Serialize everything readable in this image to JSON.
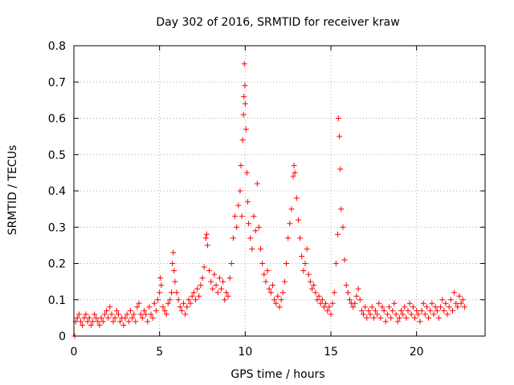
{
  "chart_data": {
    "type": "scatter",
    "title": "Day 302 of 2016, SRMTID for receiver kraw",
    "xlabel": "GPS time / hours",
    "ylabel": "SRMTID / TECUs",
    "xlim": [
      0,
      24
    ],
    "ylim": [
      0,
      0.8
    ],
    "grid": true,
    "marker": "+",
    "marker_color": "#ff0000",
    "x_ticks": [
      0,
      5,
      10,
      15,
      20
    ],
    "x_tick_labels": [
      "0",
      "5",
      "10",
      "15",
      "20"
    ],
    "y_ticks": [
      0,
      0.1,
      0.2,
      0.3,
      0.4,
      0.5,
      0.6,
      0.7,
      0.8
    ],
    "y_tick_labels": [
      "0",
      "0.1",
      "0.2",
      "0.3",
      "0.4",
      "0.5",
      "0.6",
      "0.7",
      "0.8"
    ],
    "series": [
      {
        "name": "SRMTID",
        "points": [
          [
            0.05,
            0.0
          ],
          [
            0.1,
            0.04
          ],
          [
            0.2,
            0.05
          ],
          [
            0.3,
            0.06
          ],
          [
            0.4,
            0.04
          ],
          [
            0.5,
            0.03
          ],
          [
            0.6,
            0.05
          ],
          [
            0.7,
            0.06
          ],
          [
            0.8,
            0.04
          ],
          [
            0.9,
            0.05
          ],
          [
            1.0,
            0.03
          ],
          [
            1.1,
            0.04
          ],
          [
            1.2,
            0.06
          ],
          [
            1.3,
            0.05
          ],
          [
            1.4,
            0.04
          ],
          [
            1.5,
            0.03
          ],
          [
            1.6,
            0.05
          ],
          [
            1.7,
            0.04
          ],
          [
            1.8,
            0.06
          ],
          [
            1.9,
            0.07
          ],
          [
            2.0,
            0.05
          ],
          [
            2.1,
            0.08
          ],
          [
            2.2,
            0.06
          ],
          [
            2.3,
            0.04
          ],
          [
            2.4,
            0.05
          ],
          [
            2.5,
            0.07
          ],
          [
            2.6,
            0.06
          ],
          [
            2.7,
            0.04
          ],
          [
            2.8,
            0.05
          ],
          [
            2.9,
            0.03
          ],
          [
            3.0,
            0.05
          ],
          [
            3.1,
            0.06
          ],
          [
            3.2,
            0.04
          ],
          [
            3.3,
            0.07
          ],
          [
            3.4,
            0.05
          ],
          [
            3.5,
            0.06
          ],
          [
            3.6,
            0.04
          ],
          [
            3.7,
            0.08
          ],
          [
            3.8,
            0.09
          ],
          [
            3.9,
            0.06
          ],
          [
            4.0,
            0.05
          ],
          [
            4.1,
            0.07
          ],
          [
            4.2,
            0.06
          ],
          [
            4.3,
            0.04
          ],
          [
            4.4,
            0.08
          ],
          [
            4.5,
            0.06
          ],
          [
            4.6,
            0.05
          ],
          [
            4.7,
            0.09
          ],
          [
            4.8,
            0.07
          ],
          [
            4.9,
            0.1
          ],
          [
            5.0,
            0.12
          ],
          [
            5.05,
            0.16
          ],
          [
            5.1,
            0.14
          ],
          [
            5.2,
            0.08
          ],
          [
            5.3,
            0.07
          ],
          [
            5.4,
            0.06
          ],
          [
            5.5,
            0.09
          ],
          [
            5.6,
            0.1
          ],
          [
            5.7,
            0.12
          ],
          [
            5.75,
            0.2
          ],
          [
            5.8,
            0.23
          ],
          [
            5.85,
            0.18
          ],
          [
            5.9,
            0.15
          ],
          [
            6.0,
            0.12
          ],
          [
            6.1,
            0.1
          ],
          [
            6.2,
            0.08
          ],
          [
            6.3,
            0.07
          ],
          [
            6.4,
            0.09
          ],
          [
            6.5,
            0.06
          ],
          [
            6.6,
            0.08
          ],
          [
            6.7,
            0.1
          ],
          [
            6.8,
            0.09
          ],
          [
            6.9,
            0.11
          ],
          [
            7.0,
            0.12
          ],
          [
            7.1,
            0.1
          ],
          [
            7.2,
            0.13
          ],
          [
            7.3,
            0.11
          ],
          [
            7.4,
            0.14
          ],
          [
            7.5,
            0.16
          ],
          [
            7.6,
            0.19
          ],
          [
            7.7,
            0.27
          ],
          [
            7.75,
            0.28
          ],
          [
            7.8,
            0.25
          ],
          [
            7.9,
            0.18
          ],
          [
            8.0,
            0.15
          ],
          [
            8.1,
            0.13
          ],
          [
            8.2,
            0.17
          ],
          [
            8.3,
            0.14
          ],
          [
            8.4,
            0.12
          ],
          [
            8.5,
            0.16
          ],
          [
            8.6,
            0.13
          ],
          [
            8.7,
            0.15
          ],
          [
            8.8,
            0.1
          ],
          [
            8.9,
            0.12
          ],
          [
            9.0,
            0.11
          ],
          [
            9.1,
            0.16
          ],
          [
            9.2,
            0.2
          ],
          [
            9.3,
            0.27
          ],
          [
            9.4,
            0.33
          ],
          [
            9.5,
            0.3
          ],
          [
            9.6,
            0.36
          ],
          [
            9.7,
            0.4
          ],
          [
            9.75,
            0.47
          ],
          [
            9.8,
            0.33
          ],
          [
            9.85,
            0.54
          ],
          [
            9.9,
            0.61
          ],
          [
            9.92,
            0.66
          ],
          [
            9.95,
            0.75
          ],
          [
            9.98,
            0.69
          ],
          [
            10.0,
            0.64
          ],
          [
            10.05,
            0.57
          ],
          [
            10.1,
            0.45
          ],
          [
            10.15,
            0.37
          ],
          [
            10.2,
            0.31
          ],
          [
            10.3,
            0.27
          ],
          [
            10.4,
            0.24
          ],
          [
            10.5,
            0.33
          ],
          [
            10.6,
            0.29
          ],
          [
            10.7,
            0.42
          ],
          [
            10.8,
            0.3
          ],
          [
            10.9,
            0.24
          ],
          [
            11.0,
            0.2
          ],
          [
            11.1,
            0.17
          ],
          [
            11.2,
            0.15
          ],
          [
            11.3,
            0.18
          ],
          [
            11.4,
            0.13
          ],
          [
            11.5,
            0.12
          ],
          [
            11.6,
            0.14
          ],
          [
            11.7,
            0.1
          ],
          [
            11.8,
            0.09
          ],
          [
            11.9,
            0.11
          ],
          [
            12.0,
            0.08
          ],
          [
            12.1,
            0.1
          ],
          [
            12.2,
            0.12
          ],
          [
            12.3,
            0.15
          ],
          [
            12.4,
            0.2
          ],
          [
            12.5,
            0.27
          ],
          [
            12.6,
            0.31
          ],
          [
            12.7,
            0.35
          ],
          [
            12.8,
            0.44
          ],
          [
            12.85,
            0.47
          ],
          [
            12.9,
            0.45
          ],
          [
            13.0,
            0.38
          ],
          [
            13.1,
            0.32
          ],
          [
            13.2,
            0.27
          ],
          [
            13.3,
            0.22
          ],
          [
            13.4,
            0.18
          ],
          [
            13.5,
            0.2
          ],
          [
            13.6,
            0.24
          ],
          [
            13.7,
            0.17
          ],
          [
            13.8,
            0.15
          ],
          [
            13.9,
            0.13
          ],
          [
            14.0,
            0.14
          ],
          [
            14.1,
            0.12
          ],
          [
            14.2,
            0.1
          ],
          [
            14.3,
            0.11
          ],
          [
            14.4,
            0.09
          ],
          [
            14.5,
            0.1
          ],
          [
            14.6,
            0.08
          ],
          [
            14.7,
            0.09
          ],
          [
            14.8,
            0.07
          ],
          [
            14.9,
            0.08
          ],
          [
            15.0,
            0.06
          ],
          [
            15.1,
            0.09
          ],
          [
            15.2,
            0.12
          ],
          [
            15.3,
            0.2
          ],
          [
            15.4,
            0.28
          ],
          [
            15.45,
            0.6
          ],
          [
            15.5,
            0.55
          ],
          [
            15.55,
            0.46
          ],
          [
            15.6,
            0.35
          ],
          [
            15.7,
            0.3
          ],
          [
            15.8,
            0.21
          ],
          [
            15.9,
            0.14
          ],
          [
            16.0,
            0.12
          ],
          [
            16.1,
            0.1
          ],
          [
            16.2,
            0.09
          ],
          [
            16.3,
            0.08
          ],
          [
            16.4,
            0.09
          ],
          [
            16.5,
            0.11
          ],
          [
            16.6,
            0.13
          ],
          [
            16.7,
            0.1
          ],
          [
            16.8,
            0.07
          ],
          [
            16.9,
            0.06
          ],
          [
            17.0,
            0.08
          ],
          [
            17.1,
            0.05
          ],
          [
            17.2,
            0.07
          ],
          [
            17.3,
            0.06
          ],
          [
            17.4,
            0.08
          ],
          [
            17.5,
            0.05
          ],
          [
            17.6,
            0.07
          ],
          [
            17.7,
            0.06
          ],
          [
            17.8,
            0.09
          ],
          [
            17.9,
            0.05
          ],
          [
            18.0,
            0.08
          ],
          [
            18.1,
            0.07
          ],
          [
            18.2,
            0.04
          ],
          [
            18.3,
            0.06
          ],
          [
            18.4,
            0.08
          ],
          [
            18.5,
            0.05
          ],
          [
            18.6,
            0.07
          ],
          [
            18.7,
            0.09
          ],
          [
            18.8,
            0.06
          ],
          [
            18.9,
            0.04
          ],
          [
            19.0,
            0.05
          ],
          [
            19.1,
            0.07
          ],
          [
            19.2,
            0.06
          ],
          [
            19.3,
            0.08
          ],
          [
            19.4,
            0.05
          ],
          [
            19.5,
            0.07
          ],
          [
            19.6,
            0.09
          ],
          [
            19.7,
            0.06
          ],
          [
            19.8,
            0.08
          ],
          [
            19.9,
            0.05
          ],
          [
            20.0,
            0.07
          ],
          [
            20.1,
            0.06
          ],
          [
            20.2,
            0.04
          ],
          [
            20.3,
            0.07
          ],
          [
            20.4,
            0.09
          ],
          [
            20.5,
            0.06
          ],
          [
            20.6,
            0.08
          ],
          [
            20.7,
            0.05
          ],
          [
            20.8,
            0.07
          ],
          [
            20.9,
            0.09
          ],
          [
            21.0,
            0.06
          ],
          [
            21.1,
            0.08
          ],
          [
            21.2,
            0.07
          ],
          [
            21.3,
            0.05
          ],
          [
            21.4,
            0.08
          ],
          [
            21.5,
            0.1
          ],
          [
            21.6,
            0.07
          ],
          [
            21.7,
            0.09
          ],
          [
            21.8,
            0.06
          ],
          [
            21.9,
            0.08
          ],
          [
            22.0,
            0.1
          ],
          [
            22.1,
            0.07
          ],
          [
            22.2,
            0.12
          ],
          [
            22.3,
            0.09
          ],
          [
            22.4,
            0.08
          ],
          [
            22.5,
            0.11
          ],
          [
            22.6,
            0.09
          ],
          [
            22.7,
            0.1
          ],
          [
            22.8,
            0.08
          ]
        ]
      }
    ]
  }
}
